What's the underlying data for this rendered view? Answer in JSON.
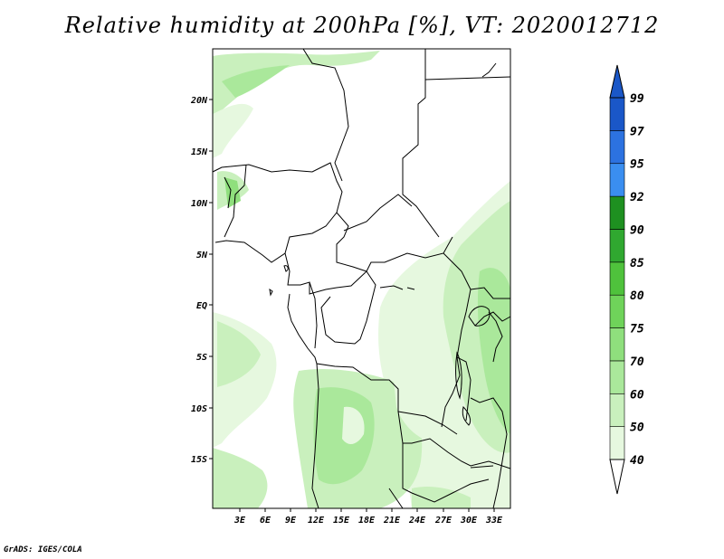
{
  "title": "Relative humidity at 200hPa [%], VT: 2020012712",
  "credit": "GrADS: IGES/COLA",
  "axes": {
    "lat_labels": [
      "20N",
      "15N",
      "10N",
      "5N",
      "EQ",
      "5S",
      "10S",
      "15S"
    ],
    "lon_labels": [
      "3E",
      "6E",
      "9E",
      "12E",
      "15E",
      "18E",
      "21E",
      "24E",
      "27E",
      "30E",
      "33E"
    ]
  },
  "colorbar": {
    "levels": [
      {
        "value": "40",
        "color": "#ffffff"
      },
      {
        "value": "50",
        "color": "#e6f8df"
      },
      {
        "value": "60",
        "color": "#c9f0bd"
      },
      {
        "value": "70",
        "color": "#aae89b"
      },
      {
        "value": "75",
        "color": "#8fdf7d"
      },
      {
        "value": "80",
        "color": "#6fd35a"
      },
      {
        "value": "85",
        "color": "#4fc23c"
      },
      {
        "value": "90",
        "color": "#30a830"
      },
      {
        "value": "92",
        "color": "#1e9020"
      },
      {
        "value": "95",
        "color": "#3a8ef0"
      },
      {
        "value": "97",
        "color": "#2c72e0"
      },
      {
        "value": "99",
        "color": "#1a57c8"
      }
    ]
  }
}
